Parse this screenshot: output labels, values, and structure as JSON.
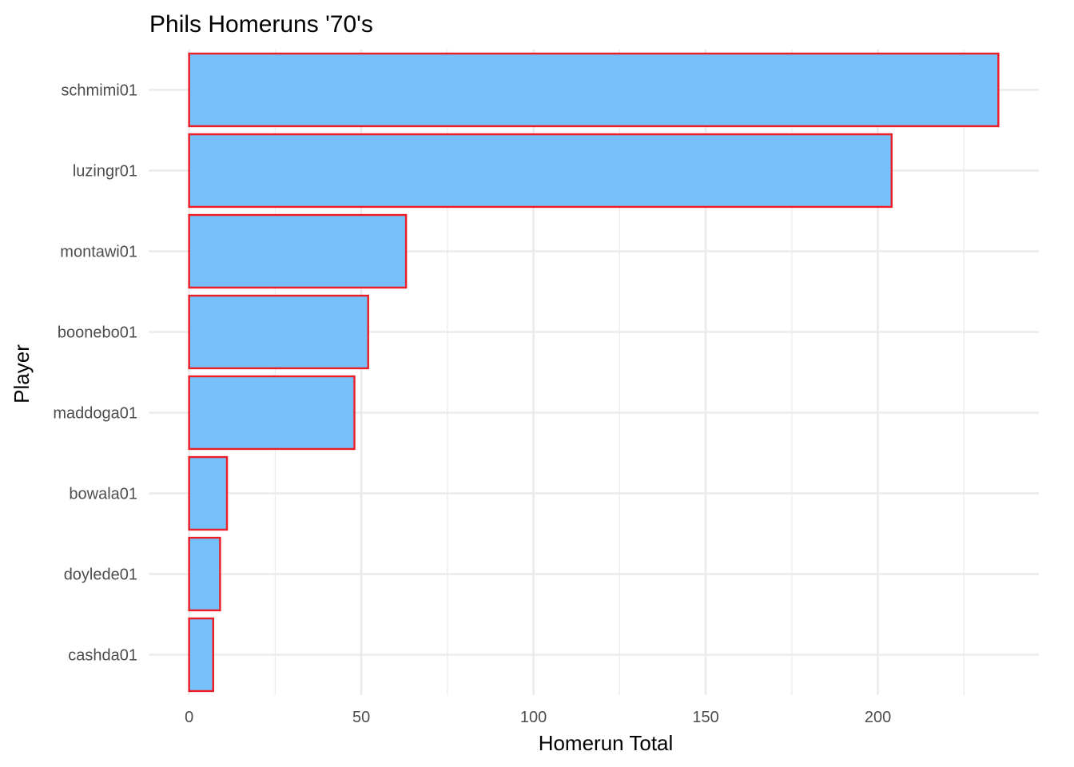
{
  "chart_data": {
    "type": "bar",
    "orientation": "horizontal",
    "title": "Phils Homeruns '70's",
    "xlabel": "Homerun Total",
    "ylabel": "Player",
    "categories": [
      "schmimi01",
      "luzingr01",
      "montawi01",
      "boonebo01",
      "maddoga01",
      "bowala01",
      "doylede01",
      "cashda01"
    ],
    "values": [
      235,
      204,
      63,
      52,
      48,
      11,
      9,
      7
    ],
    "xlim": [
      -11.75,
      246.75
    ],
    "xticks": [
      0,
      50,
      100,
      150,
      200
    ],
    "xtick_labels": [
      "0",
      "50",
      "100",
      "150",
      "200"
    ],
    "grid": true,
    "bar_fill": "#77c1fa",
    "bar_outline": "#ee1c25"
  }
}
